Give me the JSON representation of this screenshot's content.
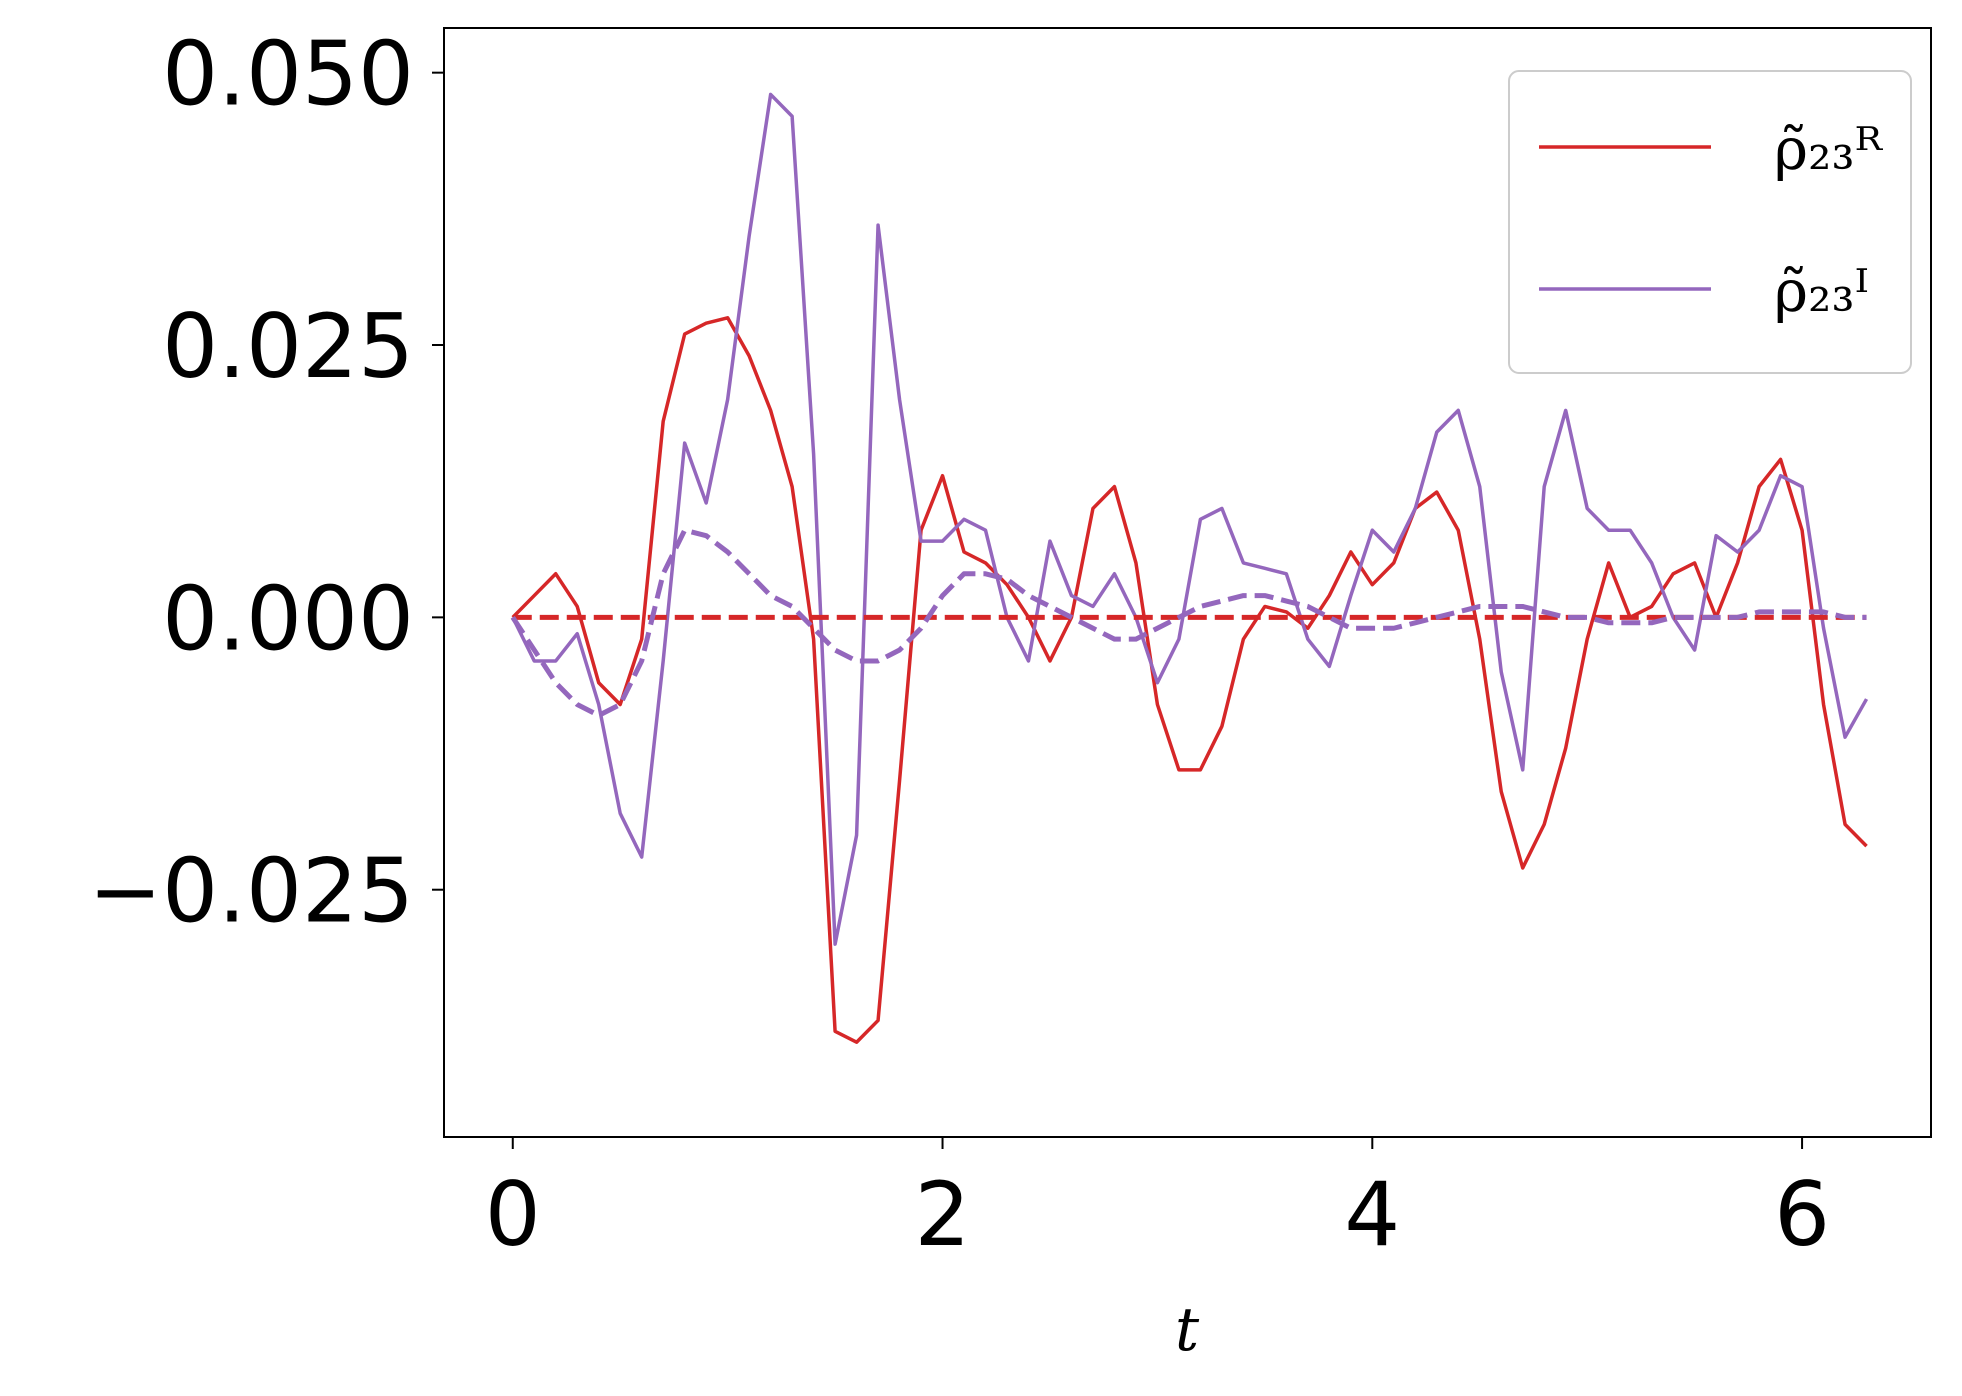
{
  "chart_data": {
    "type": "line",
    "x_label": "t",
    "x": [
      0,
      0.1,
      0.2,
      0.3,
      0.4,
      0.5,
      0.6,
      0.7,
      0.8,
      0.9,
      1.0,
      1.1,
      1.2,
      1.3,
      1.4,
      1.5,
      1.6,
      1.7,
      1.8,
      1.9,
      2.0,
      2.1,
      2.2,
      2.3,
      2.4,
      2.5,
      2.6,
      2.7,
      2.8,
      2.9,
      3.0,
      3.1,
      3.2,
      3.3,
      3.4,
      3.5,
      3.6,
      3.7,
      3.8,
      3.9,
      4.0,
      4.1,
      4.2,
      4.3,
      4.4,
      4.5,
      4.6,
      4.7,
      4.8,
      4.9,
      5.0,
      5.1,
      5.2,
      5.3,
      5.4,
      5.5,
      5.6,
      5.7,
      5.8,
      5.9,
      6.0,
      6.1,
      6.2,
      6.3
    ],
    "series": [
      {
        "name": "ρ̃₂₃ᴿ",
        "color": "#d62728",
        "linestyle": "solid",
        "values": [
          0,
          0.002,
          0.004,
          0.001,
          -0.006,
          -0.008,
          -0.002,
          0.018,
          0.026,
          0.027,
          0.0275,
          0.024,
          0.019,
          0.012,
          -0.002,
          -0.038,
          -0.039,
          -0.037,
          -0.015,
          0.008,
          0.013,
          0.006,
          0.005,
          0.003,
          0.0,
          -0.004,
          0.0,
          0.01,
          0.012,
          0.005,
          -0.008,
          -0.014,
          -0.014,
          -0.01,
          -0.002,
          0.001,
          0.0005,
          -0.001,
          0.002,
          0.006,
          0.003,
          0.005,
          0.01,
          0.0115,
          0.008,
          -0.002,
          -0.016,
          -0.023,
          -0.019,
          -0.012,
          -0.002,
          0.005,
          0.0,
          0.001,
          0.004,
          0.005,
          0.0,
          0.005,
          0.012,
          0.0145,
          0.008,
          -0.008,
          -0.019,
          -0.021
        ]
      },
      {
        "name": "ρ̃₂₃ᴵ",
        "color": "#9467bd",
        "linestyle": "solid",
        "values": [
          0,
          -0.004,
          -0.004,
          -0.0015,
          -0.008,
          -0.018,
          -0.022,
          -0.004,
          0.016,
          0.0105,
          0.02,
          0.035,
          0.048,
          0.046,
          0.015,
          -0.03,
          -0.02,
          0.036,
          0.02,
          0.007,
          0.007,
          0.009,
          0.008,
          0.0,
          -0.004,
          0.007,
          0.002,
          0.001,
          0.004,
          0.0,
          -0.006,
          -0.002,
          0.009,
          0.01,
          0.005,
          0.0045,
          0.004,
          -0.002,
          -0.0045,
          0.002,
          0.008,
          0.006,
          0.01,
          0.017,
          0.019,
          0.012,
          -0.005,
          -0.014,
          0.012,
          0.019,
          0.01,
          0.008,
          0.008,
          0.005,
          0.0,
          -0.003,
          0.0075,
          0.006,
          0.008,
          0.013,
          0.012,
          -0.001,
          -0.011,
          -0.0075
        ]
      },
      {
        "color": "#d62728",
        "linestyle": "dashed",
        "values": [
          0,
          0,
          0,
          0,
          0,
          0,
          0,
          0,
          0,
          0,
          0,
          0,
          0,
          0,
          0,
          0,
          0,
          0,
          0,
          0,
          0,
          0,
          0,
          0,
          0,
          0,
          0,
          0,
          0,
          0,
          0,
          0,
          0,
          0,
          0,
          0,
          0,
          0,
          0,
          0,
          0,
          0,
          0,
          0,
          0,
          0,
          0,
          0,
          0,
          0,
          0,
          0,
          0,
          0,
          0,
          0,
          0,
          0,
          0,
          0,
          0,
          0,
          0,
          0
        ]
      },
      {
        "color": "#9467bd",
        "linestyle": "dashed",
        "values": [
          0,
          -0.003,
          -0.006,
          -0.008,
          -0.009,
          -0.008,
          -0.004,
          0.004,
          0.008,
          0.0075,
          0.006,
          0.004,
          0.002,
          0.001,
          -0.001,
          -0.003,
          -0.004,
          -0.004,
          -0.003,
          -0.001,
          0.002,
          0.004,
          0.004,
          0.0035,
          0.002,
          0.001,
          0,
          -0.001,
          -0.002,
          -0.002,
          -0.001,
          0,
          0.001,
          0.0015,
          0.002,
          0.002,
          0.0015,
          0.001,
          0,
          -0.001,
          -0.001,
          -0.001,
          -0.0005,
          0,
          0.0005,
          0.001,
          0.001,
          0.001,
          0.0005,
          0,
          0,
          -0.0005,
          -0.0005,
          -0.0005,
          0,
          0,
          0,
          0,
          0.0005,
          0.0005,
          0.0005,
          0.0005,
          0,
          0
        ]
      }
    ],
    "xlim": [
      -0.32,
      6.6
    ],
    "xticks": [
      0,
      2,
      4,
      6
    ],
    "ylim": [
      -0.0477,
      0.0541
    ],
    "yticks": [
      {
        "value": -0.025,
        "label": "−0.025"
      },
      {
        "value": 0,
        "label": "0.000"
      },
      {
        "value": 0.025,
        "label": "0.025"
      },
      {
        "value": 0.05,
        "label": "0.050"
      }
    ],
    "grid": false,
    "legend": "upper right"
  }
}
